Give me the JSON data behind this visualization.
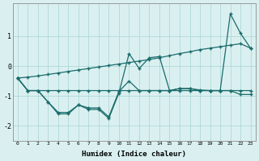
{
  "xlabel": "Humidex (Indice chaleur)",
  "background_color": "#daf0f0",
  "grid_color": "#b0d8d8",
  "line_color": "#1a6b6b",
  "x_values": [
    0,
    1,
    2,
    3,
    4,
    5,
    6,
    7,
    8,
    9,
    10,
    11,
    12,
    13,
    14,
    15,
    16,
    17,
    18,
    19,
    20,
    21,
    22,
    23
  ],
  "line1": [
    -0.4,
    -0.82,
    -0.82,
    -1.2,
    -1.6,
    -1.6,
    -1.3,
    -1.45,
    -1.45,
    -1.75,
    -0.9,
    0.42,
    -0.08,
    0.28,
    0.32,
    -0.82,
    -0.75,
    -0.75,
    -0.8,
    -0.82,
    -0.82,
    1.75,
    1.1,
    0.6
  ],
  "line2": [
    -0.4,
    -0.82,
    -0.82,
    -0.82,
    -0.82,
    -0.82,
    -0.82,
    -0.82,
    -0.82,
    -0.82,
    -0.82,
    -0.82,
    -0.82,
    -0.82,
    -0.82,
    -0.82,
    -0.82,
    -0.82,
    -0.82,
    -0.82,
    -0.82,
    -0.82,
    -0.82,
    -0.82
  ],
  "line3": [
    -0.4,
    -0.82,
    -0.82,
    -1.2,
    -1.55,
    -1.55,
    -1.3,
    -1.4,
    -1.4,
    -1.7,
    -0.85,
    -0.5,
    -0.82,
    -0.82,
    -0.82,
    -0.82,
    -0.75,
    -0.75,
    -0.82,
    -0.82,
    -0.82,
    -0.82,
    -0.95,
    -0.95
  ],
  "line_diag": [
    -0.4,
    -0.37,
    -0.33,
    -0.28,
    -0.23,
    -0.18,
    -0.13,
    -0.08,
    -0.03,
    0.02,
    0.07,
    0.12,
    0.17,
    0.22,
    0.28,
    0.35,
    0.42,
    0.48,
    0.55,
    0.6,
    0.65,
    0.7,
    0.75,
    0.6
  ],
  "ylim": [
    -2.5,
    2.1
  ],
  "yticks": [
    -2,
    -1,
    0,
    1
  ],
  "figsize": [
    3.2,
    2.0
  ],
  "dpi": 100
}
